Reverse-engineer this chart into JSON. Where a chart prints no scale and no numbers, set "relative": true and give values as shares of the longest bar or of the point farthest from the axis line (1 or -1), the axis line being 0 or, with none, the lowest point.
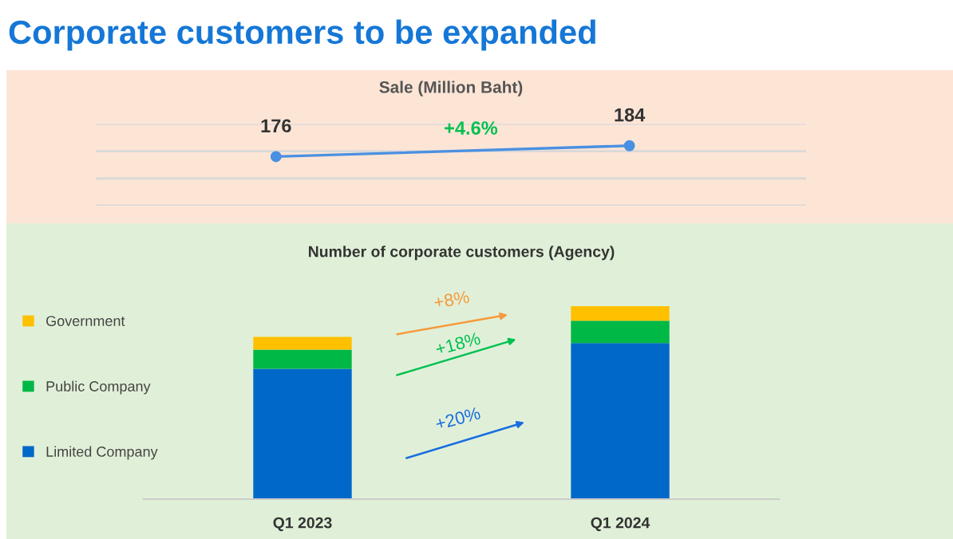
{
  "chart_data": [
    {
      "type": "line",
      "title": "Corporate customers to be expanded",
      "subtitle": "Sale (Million Baht)",
      "categories": [
        null,
        null
      ],
      "series": [
        {
          "color": "#4a90e2",
          "values": [
            176,
            184
          ]
        }
      ],
      "ylim": [
        140,
        200
      ],
      "yticks": [
        {
          "value": 140,
          "label": null
        },
        {
          "value": 160,
          "label": null
        },
        {
          "value": 180,
          "label": null
        },
        {
          "value": 200,
          "label": null
        }
      ],
      "grid": "y",
      "marker": "circle",
      "line_style": "solid",
      "data_labels": true,
      "tick_labels": false,
      "annotations": [
        "+4.6%"
      ]
    },
    {
      "type": "bar",
      "title": "Number of corporate customers (Agency)",
      "categories": [
        "Q1 2023",
        "Q1 2024"
      ],
      "stacked": true,
      "relative": true,
      "series": [
        {
          "name": "Limited Company",
          "color": "#0068c8",
          "values": [
            0.675,
            0.809
          ]
        },
        {
          "name": "Public Company",
          "color": "#00b846",
          "values": [
            0.099,
            0.115
          ]
        },
        {
          "name": "Government",
          "color": "#ffc000",
          "values": [
            0.067,
            0.076
          ]
        }
      ],
      "legend": "left",
      "tick_labels": "x",
      "grid": false,
      "annotations": [
        "+8%",
        "+18%",
        "+20%"
      ]
    }
  ]
}
